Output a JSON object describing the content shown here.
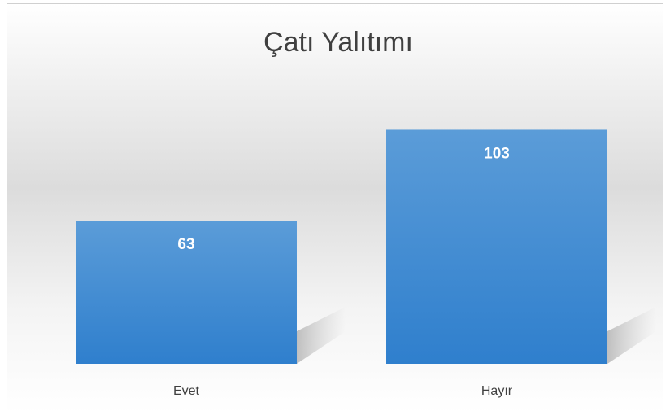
{
  "chart_data": {
    "type": "bar",
    "title": "Çatı Yalıtımı",
    "categories": [
      "Evet",
      "Hayır"
    ],
    "values": [
      63,
      103
    ],
    "color": "#4a8fd6",
    "ylim": [
      0,
      120
    ]
  }
}
